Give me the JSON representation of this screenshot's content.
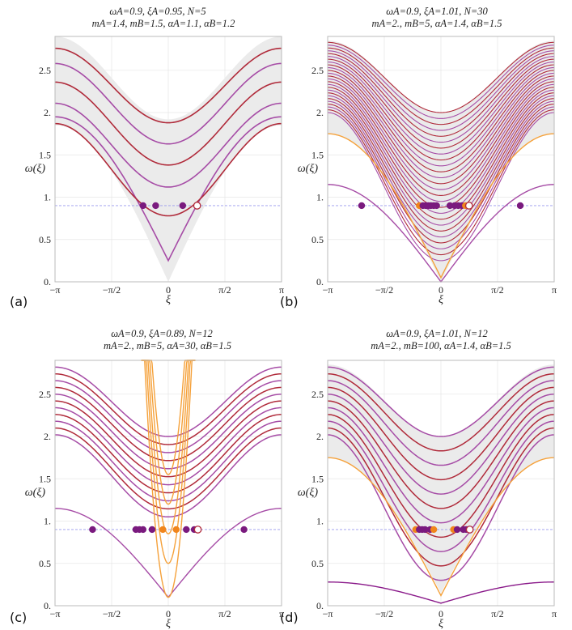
{
  "colors": {
    "band": "#ebebeb",
    "frame": "#bbbbbb",
    "grid": "#e6e6e6",
    "level": "#9a9aee",
    "purple": "#a64ca6",
    "maroon": "#b02a3a",
    "orange": "#f5a13a",
    "dot_purple": "#7a1a7e",
    "dot_orange": "#f0851c",
    "dark_purple": "#8a1a8a"
  },
  "chart_data": [
    {
      "type": "line",
      "panel": "(a)",
      "title_line1": "ωA=0.9, ξA=0.95, N=5",
      "title_line2": "mA=1.4, mB=1.5, αA=1.1, αB=1.2",
      "xlabel": "ξ",
      "ylabel": "ω(ξ)",
      "xlim": [
        -3.1416,
        3.1416
      ],
      "ylim": [
        0,
        2.9
      ],
      "x_ticks": [
        "−π",
        "−π/2",
        "0",
        "π/2",
        "π"
      ],
      "y_ticks": [
        "0.",
        "0.5",
        "1.",
        "1.5",
        "2.",
        "2.5"
      ],
      "grid": true,
      "reference_line": 0.9,
      "band": {
        "low_min": 0.0,
        "low_max": 1.85,
        "high_min": 1.92,
        "high_max": 2.9
      },
      "series": [
        {
          "style": "purple",
          "values_at_0": 0.25,
          "values_at_pi": 1.95
        },
        {
          "style": "maroon",
          "values_at_0": 0.78,
          "values_at_pi": 1.87
        },
        {
          "style": "purple",
          "values_at_0": 1.12,
          "values_at_pi": 2.11
        },
        {
          "style": "maroon",
          "values_at_0": 1.38,
          "values_at_pi": 2.36
        },
        {
          "style": "purple",
          "values_at_0": 1.63,
          "values_at_pi": 2.58
        },
        {
          "style": "maroon",
          "values_at_0": 1.88,
          "values_at_pi": 2.76
        }
      ],
      "points": [
        {
          "x": -0.7,
          "y": 0.9,
          "fill": "dot_purple"
        },
        {
          "x": -0.35,
          "y": 0.9,
          "fill": "dot_purple"
        },
        {
          "x": 0.4,
          "y": 0.9,
          "fill": "dot_purple"
        },
        {
          "x": 0.8,
          "y": 0.9,
          "fill": "open"
        }
      ]
    },
    {
      "type": "line",
      "panel": "(b)",
      "title_line1": "ωA=0.9, ξA=1.01, N=30",
      "title_line2": "mA=2., mB=5, αA=1.4, αB=1.5",
      "xlabel": "ξ",
      "ylabel": "ω(ξ)",
      "xlim": [
        -3.1416,
        3.1416
      ],
      "ylim": [
        0,
        2.9
      ],
      "x_ticks": [
        "−π",
        "−π/2",
        "0",
        "π/2",
        "π"
      ],
      "y_ticks": [
        "0.",
        "0.5",
        "1.",
        "1.5",
        "2.",
        "2.5"
      ],
      "grid": true,
      "reference_line": 0.9,
      "band": {
        "low_min": 0.0,
        "low_max": 1.75,
        "high_min": 2.0,
        "high_max": 2.85
      },
      "series_count": 26,
      "series_range_at_0": [
        0.25,
        2.0
      ],
      "series_range_at_pi": [
        2.0,
        2.83
      ],
      "extra_series": [
        {
          "style": "purple",
          "values_at_0": 0.0,
          "values_at_pi": 1.15
        },
        {
          "style": "orange",
          "values_at_0": 0.05,
          "values_at_pi": 1.75
        }
      ],
      "points": [
        {
          "x": -2.2,
          "y": 0.9,
          "fill": "dot_purple"
        },
        {
          "x": -0.6,
          "y": 0.9,
          "fill": "dot_orange"
        },
        {
          "x": -0.5,
          "y": 0.9,
          "fill": "dot_purple"
        },
        {
          "x": -0.42,
          "y": 0.9,
          "fill": "dot_purple"
        },
        {
          "x": -0.35,
          "y": 0.9,
          "fill": "dot_purple"
        },
        {
          "x": -0.28,
          "y": 0.9,
          "fill": "dot_purple"
        },
        {
          "x": -0.2,
          "y": 0.9,
          "fill": "dot_purple"
        },
        {
          "x": -0.12,
          "y": 0.9,
          "fill": "dot_purple"
        },
        {
          "x": 0.25,
          "y": 0.9,
          "fill": "dot_purple"
        },
        {
          "x": 0.38,
          "y": 0.9,
          "fill": "dot_purple"
        },
        {
          "x": 0.48,
          "y": 0.9,
          "fill": "dot_purple"
        },
        {
          "x": 0.58,
          "y": 0.9,
          "fill": "dot_purple"
        },
        {
          "x": 0.68,
          "y": 0.9,
          "fill": "dot_orange"
        },
        {
          "x": 0.78,
          "y": 0.9,
          "fill": "open"
        },
        {
          "x": 2.2,
          "y": 0.9,
          "fill": "dot_purple"
        }
      ]
    },
    {
      "type": "line",
      "panel": "(c)",
      "title_line1": "ωA=0.9, ξA=0.89, N=12",
      "title_line2": "mA=2., mB=5, αA=30, αB=1.5",
      "xlabel": "ξ",
      "ylabel": "ω(ξ)",
      "xlim": [
        -3.1416,
        3.1416
      ],
      "ylim": [
        0,
        2.9
      ],
      "x_ticks": [
        "−π",
        "−π/2",
        "0",
        "π/2",
        "π"
      ],
      "y_ticks": [
        "0.",
        "0.5",
        "1.",
        "1.5",
        "2.",
        "2.5"
      ],
      "grid": true,
      "reference_line": 0.9,
      "series_count": 11,
      "series_range_at_0": [
        1.05,
        2.0
      ],
      "series_range_at_pi": [
        2.02,
        2.82
      ],
      "extra_series": [
        {
          "style": "purple",
          "values_at_0": 0.1,
          "values_at_pi": 1.15
        }
      ],
      "orange_parabolas": [
        0.1,
        0.5,
        0.85,
        1.2,
        1.55
      ],
      "points": [
        {
          "x": -2.1,
          "y": 0.9,
          "fill": "dot_purple"
        },
        {
          "x": -0.9,
          "y": 0.9,
          "fill": "dot_purple"
        },
        {
          "x": -0.8,
          "y": 0.9,
          "fill": "dot_purple"
        },
        {
          "x": -0.7,
          "y": 0.9,
          "fill": "dot_purple"
        },
        {
          "x": -0.45,
          "y": 0.9,
          "fill": "dot_purple"
        },
        {
          "x": -0.15,
          "y": 0.9,
          "fill": "dot_orange"
        },
        {
          "x": 0.22,
          "y": 0.9,
          "fill": "dot_orange"
        },
        {
          "x": 0.5,
          "y": 0.9,
          "fill": "dot_purple"
        },
        {
          "x": 0.72,
          "y": 0.9,
          "fill": "dot_purple"
        },
        {
          "x": 0.82,
          "y": 0.9,
          "fill": "open"
        },
        {
          "x": 2.1,
          "y": 0.9,
          "fill": "dot_purple"
        }
      ]
    },
    {
      "type": "line",
      "panel": "(d)",
      "title_line1": "ωA=0.9, ξA=1.01, N=12",
      "title_line2": "mA=2., mB=100, αA=1.4, αB=1.5",
      "xlabel": "ξ",
      "ylabel": "ω(ξ)",
      "xlim": [
        -3.1416,
        3.1416
      ],
      "ylim": [
        0,
        2.9
      ],
      "x_ticks": [
        "−π",
        "−π/2",
        "0",
        "π/2",
        "π"
      ],
      "y_ticks": [
        "0.",
        "0.5",
        "1.",
        "1.5",
        "2.",
        "2.5"
      ],
      "grid": true,
      "reference_line": 0.9,
      "band": {
        "low_min": 0.15,
        "low_max": 1.75,
        "high_min": 2.0,
        "high_max": 2.85
      },
      "series_count": 11,
      "series_range_at_0": [
        0.3,
        2.0
      ],
      "series_range_at_pi": [
        2.02,
        2.82
      ],
      "extra_series": [
        {
          "style": "dark_purple",
          "values_at_0": 0.03,
          "values_at_pi": 0.28
        },
        {
          "style": "orange",
          "values_at_0": 0.12,
          "values_at_pi": 1.75
        }
      ],
      "points": [
        {
          "x": -0.7,
          "y": 0.9,
          "fill": "dot_orange"
        },
        {
          "x": -0.6,
          "y": 0.9,
          "fill": "dot_purple"
        },
        {
          "x": -0.52,
          "y": 0.9,
          "fill": "dot_purple"
        },
        {
          "x": -0.44,
          "y": 0.9,
          "fill": "dot_purple"
        },
        {
          "x": -0.3,
          "y": 0.9,
          "fill": "dot_purple"
        },
        {
          "x": -0.2,
          "y": 0.9,
          "fill": "dot_orange"
        },
        {
          "x": 0.35,
          "y": 0.9,
          "fill": "dot_orange"
        },
        {
          "x": 0.45,
          "y": 0.9,
          "fill": "dot_purple"
        },
        {
          "x": 0.62,
          "y": 0.9,
          "fill": "dot_purple"
        },
        {
          "x": 0.7,
          "y": 0.9,
          "fill": "dot_purple"
        },
        {
          "x": 0.8,
          "y": 0.9,
          "fill": "open"
        }
      ]
    }
  ]
}
